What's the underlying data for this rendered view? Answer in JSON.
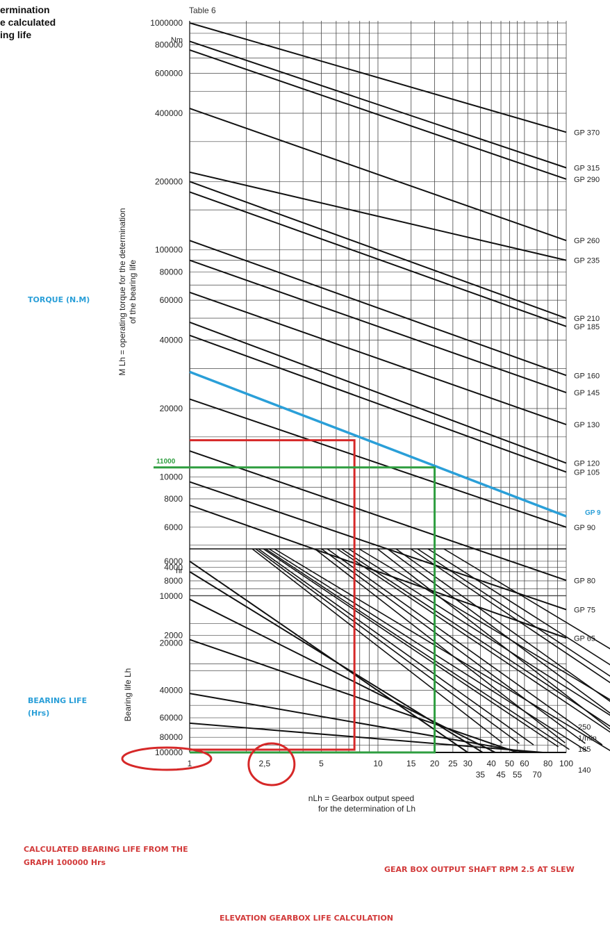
{
  "header_lines": [
    "ermination",
    "e calculated",
    "ing life"
  ],
  "table_label": "Table 6",
  "notes": {
    "torque": "TORQUE (N.M)",
    "bearing_life": [
      "BEARING LIFE",
      "(Hrs)"
    ],
    "calc_life": [
      "CALCULATED BEARING LIFE FROM THE",
      "GRAPH 100000 Hrs"
    ],
    "output_rpm": "GEAR BOX OUTPUT SHAFT RPM 2.5 AT SLEW",
    "footer": "ELEVATION GEARBOX LIFE CALCULATION"
  },
  "colors": {
    "ink": "#111111",
    "red": "#d62828",
    "green": "#2e9e3f",
    "blue": "#2a9fd8",
    "note_red": "#d23a3a",
    "note_blue": "#2a9fd8"
  },
  "chart_data": {
    "type": "line",
    "torque_axis": {
      "label": "M Lh = operating torque for the determination of the bearing life",
      "unit": "Nm",
      "ticks": [
        "1000000",
        "800000",
        "600000",
        "400000",
        "200000",
        "100000",
        "80000",
        "60000",
        "40000",
        "20000",
        "10000",
        "8000",
        "6000",
        "4000",
        "2000"
      ],
      "range": [
        1500,
        1000000
      ],
      "scale": "log"
    },
    "life_axis": {
      "label": "Bearing life Lh",
      "unit": "hr",
      "ticks": [
        "6000",
        "8000",
        "10000",
        "20000",
        "40000",
        "60000",
        "80000",
        "100000"
      ],
      "range": [
        5000,
        100000
      ],
      "scale": "log",
      "inverted": true
    },
    "speed_axis": {
      "label": [
        "nLh = Gearbox output speed",
        "for the determination of Lh"
      ],
      "ticks_row1": [
        "1",
        "2,5",
        "5",
        "10",
        "15",
        "20",
        "25",
        "30",
        "40",
        "50",
        "60",
        "80",
        "100"
      ],
      "ticks_row2": [
        "35",
        "45",
        "55",
        "70"
      ],
      "range": [
        1,
        100
      ],
      "scale": "log"
    },
    "series": [
      {
        "name": "GP 370",
        "torque_at_1": 1000000,
        "torque_at_100": 330000
      },
      {
        "name": "GP 315",
        "torque_at_1": 830000,
        "torque_at_100": 230000
      },
      {
        "name": "GP 290",
        "torque_at_1": 760000,
        "torque_at_100": 205000
      },
      {
        "name": "GP 260",
        "torque_at_1": 420000,
        "torque_at_100": 110000
      },
      {
        "name": "GP 235",
        "torque_at_1": 220000,
        "torque_at_100": 90000
      },
      {
        "name": "GP 210",
        "torque_at_1": 200000,
        "torque_at_100": 50000
      },
      {
        "name": "GP 185",
        "torque_at_1": 180000,
        "torque_at_100": 46000
      },
      {
        "name": "GP 160",
        "torque_at_1": 110000,
        "torque_at_100": 28000
      },
      {
        "name": "GP 145",
        "torque_at_1": 90000,
        "torque_at_100": 23500
      },
      {
        "name": "GP 130",
        "torque_at_1": 65000,
        "torque_at_100": 17000
      },
      {
        "name": "GP 120",
        "torque_at_1": 48000,
        "torque_at_100": 11500
      },
      {
        "name": "GP 105",
        "torque_at_1": 42000,
        "torque_at_100": 10500
      },
      {
        "name": "GP 90",
        "torque_at_1": 22000,
        "torque_at_100": 6000
      },
      {
        "name": "GP 80",
        "torque_at_1": 13000,
        "torque_at_100": 3500
      },
      {
        "name": "GP 75",
        "torque_at_1": 9500,
        "torque_at_100": 2600
      },
      {
        "name": "GP 65",
        "torque_at_1": 7500,
        "torque_at_100": 1950
      }
    ],
    "highlight_line": {
      "name": "GP 9",
      "torque_at_1": 29000,
      "torque_at_100": 6700
    },
    "life_lines": [
      {
        "life_at_1": 6000,
        "speed_at_100000": 30
      },
      {
        "life_at_1": 7000,
        "speed_at_100000": 36
      },
      {
        "life_at_1": 10500,
        "speed_at_100000": 42
      },
      {
        "life_at_1": 19000,
        "speed_at_100000": 55
      },
      {
        "life_at_1": 42000,
        "speed_at_100000": 62
      },
      {
        "life_at_1": 65000,
        "speed_at_100000": 75
      },
      {
        "life_at_1": 100000,
        "speed_at_100000": 100
      }
    ],
    "life_line_labels": [
      "250",
      "1/min",
      "185",
      "140"
    ],
    "annotations": {
      "red_torque": 14500,
      "red_speed": 7.5,
      "green_torque": 11000,
      "green_torque_label": "11000",
      "green_speed": 20,
      "result_life": 100000,
      "circled_speed": 2.5
    }
  }
}
